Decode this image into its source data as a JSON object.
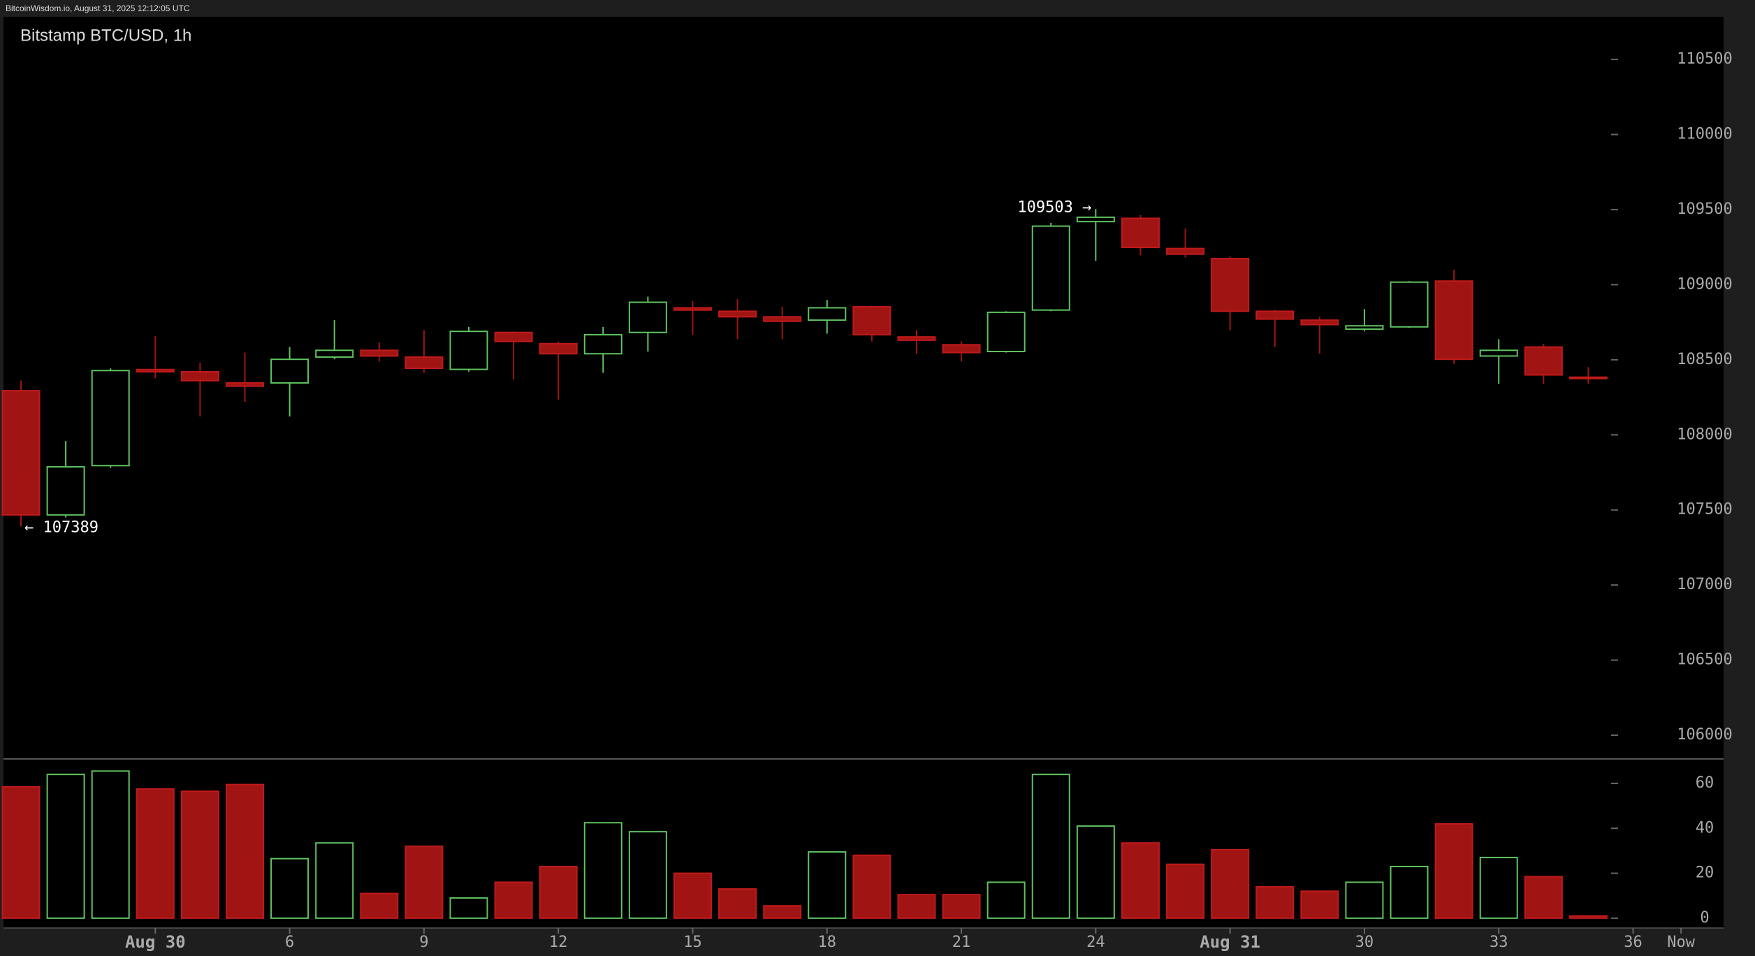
{
  "header": "BitcoinWisdom.io, August 31, 2025 12:12:05 UTC",
  "chart_data": [
    {
      "type": "candlestick",
      "title": "Bitstamp BTC/USD, 1h",
      "x": [
        0,
        1,
        2,
        3,
        4,
        5,
        6,
        7,
        8,
        9,
        10,
        11,
        12,
        13,
        14,
        15,
        16,
        17,
        18,
        19,
        20,
        21,
        22,
        23,
        24,
        25,
        26,
        27,
        28,
        29,
        30,
        31,
        32,
        33,
        34,
        35
      ],
      "open": [
        108294,
        107467,
        107795,
        108435,
        108420,
        108346,
        108346,
        108518,
        108563,
        108518,
        108436,
        108682,
        108607,
        108540,
        108682,
        108846,
        108823,
        108786,
        108764,
        108853,
        108652,
        108600,
        108555,
        108831,
        109420,
        109442,
        109241,
        109174,
        108823,
        108764,
        108704,
        108719,
        109024,
        108525,
        108585,
        108384
      ],
      "high": [
        108361,
        107959,
        108443,
        108659,
        108480,
        108548,
        108585,
        108764,
        108615,
        108697,
        108719,
        108689,
        108622,
        108719,
        108920,
        108890,
        108905,
        108853,
        108898,
        108860,
        108697,
        108622,
        108823,
        109412,
        109503,
        109464,
        109375,
        109188,
        108831,
        108786,
        108838,
        109024,
        109099,
        108637,
        108607,
        108451
      ],
      "low": [
        107389,
        107450,
        107780,
        108376,
        108123,
        108220,
        108123,
        108503,
        108488,
        108413,
        108421,
        108369,
        108235,
        108413,
        108555,
        108667,
        108637,
        108637,
        108674,
        108622,
        108540,
        108488,
        108548,
        108823,
        109159,
        109196,
        109181,
        108697,
        108585,
        108540,
        108689,
        108712,
        108473,
        108339,
        108339,
        108339
      ],
      "close": [
        107467,
        107787,
        108428,
        108420,
        108361,
        108324,
        108503,
        108563,
        108525,
        108443,
        108689,
        108622,
        108540,
        108667,
        108883,
        108831,
        108786,
        108756,
        108846,
        108667,
        108630,
        108548,
        108816,
        109390,
        109449,
        109248,
        109203,
        108823,
        108771,
        108734,
        108726,
        109017,
        108503,
        108563,
        108399,
        108376
      ],
      "up_color": "#5fc35f",
      "down_color": "#a01414",
      "xlim": [
        -0.39,
        38.02
      ],
      "ylim": [
        105842,
        110784
      ],
      "yticks": [
        106000,
        106500,
        107000,
        107500,
        108000,
        108500,
        109000,
        109500,
        110000,
        110500
      ],
      "annotations": [
        {
          "value": 109503,
          "label": "109503 →"
        },
        {
          "value": 107389,
          "label": "← 107389"
        }
      ]
    },
    {
      "type": "bar",
      "x": [
        0,
        1,
        2,
        3,
        4,
        5,
        6,
        7,
        8,
        9,
        10,
        11,
        12,
        13,
        14,
        15,
        16,
        17,
        18,
        19,
        20,
        21,
        22,
        23,
        24,
        25,
        26,
        27,
        28,
        29,
        30,
        31,
        32,
        33,
        34,
        35
      ],
      "values": [
        58.5,
        64,
        65.5,
        57.5,
        56.5,
        59.5,
        26.5,
        33.5,
        11,
        32,
        9,
        16,
        23,
        42.5,
        38.5,
        20,
        13,
        5.5,
        29.5,
        28,
        10.5,
        10.5,
        16,
        64,
        41,
        33.5,
        24,
        30.5,
        14,
        12,
        16,
        23,
        42,
        27,
        18.5,
        1
      ],
      "xlim": [
        -0.39,
        38.02
      ],
      "ylim": [
        -4.4,
        70.9
      ],
      "yticks": [
        0,
        20,
        40,
        60
      ],
      "xticks": [
        {
          "value": 3,
          "label": "Aug 30"
        },
        6,
        9,
        12,
        15,
        18,
        21,
        24,
        {
          "value": 27,
          "label": "Aug 31"
        },
        30,
        33,
        36,
        {
          "value": 37.07,
          "label": "Now"
        }
      ]
    }
  ]
}
